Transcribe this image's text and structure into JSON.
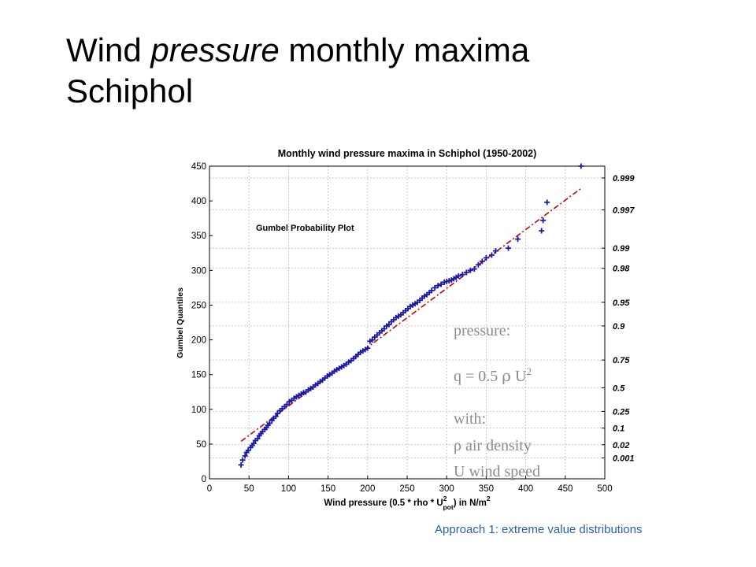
{
  "slide": {
    "title_line1_pre": "Wind ",
    "title_line1_em": "pressure",
    "title_line1_post": " monthly maxima",
    "title_line2": "Schiphol",
    "footer": "Approach 1: extreme value distributions"
  },
  "chart_data": {
    "type": "scatter",
    "title": "Monthly wind pressure maxima in Schiphol (1950-2002)",
    "subtitle": "Gumbel Probability Plot",
    "xlabel": {
      "pre": "Wind pressure (0.5 * rho * U",
      "sup": "2",
      "sub": "pot",
      "post": ") in N/m",
      "unit_sup": "2"
    },
    "ylabel": "Gumbel Quantiles",
    "xlim": [
      0,
      500
    ],
    "ylim": [
      0,
      450
    ],
    "xticks": [
      0,
      50,
      100,
      150,
      200,
      250,
      300,
      350,
      400,
      450,
      500
    ],
    "yticks": [
      0,
      50,
      100,
      150,
      200,
      250,
      300,
      350,
      400,
      450
    ],
    "grid": true,
    "probability_axis": {
      "labels": [
        "0.999",
        "0.997",
        "0.99",
        "0.98",
        "0.95",
        "0.9",
        "0.75",
        "0.5",
        "0.25",
        "0.1",
        "0.02",
        "0.001"
      ],
      "y_values": [
        433,
        387,
        332,
        303,
        254,
        220,
        171,
        131,
        97,
        73,
        49,
        30
      ]
    },
    "fit_line": {
      "x": [
        40,
        470
      ],
      "y": [
        54,
        418
      ],
      "color": "#cc0000",
      "style": "dash-dot"
    },
    "series": [
      {
        "marker": "+",
        "color": "#1a1aa6",
        "x": [
          40,
          42,
          45,
          47,
          49,
          52,
          54,
          56,
          58,
          61,
          63,
          65,
          67,
          70,
          72,
          74,
          76,
          79,
          81,
          84,
          86,
          89,
          92,
          95,
          98,
          101,
          104,
          107,
          110,
          113,
          116,
          119,
          122,
          125,
          128,
          131,
          134,
          137,
          140,
          143,
          146,
          149,
          152,
          155,
          158,
          161,
          164,
          167,
          170,
          173,
          176,
          179,
          182,
          185,
          188,
          191,
          194,
          197,
          200,
          203,
          206,
          209,
          212,
          215,
          218,
          221,
          224,
          227,
          230,
          233,
          236,
          239,
          242,
          245,
          248,
          251,
          254,
          257,
          260,
          263,
          266,
          269,
          272,
          275,
          278,
          281,
          285,
          289,
          293,
          297,
          300,
          303,
          306,
          309,
          312,
          315,
          320,
          325,
          330,
          335,
          340,
          345,
          350,
          357,
          362,
          378,
          390,
          420,
          422,
          427,
          470
        ],
        "y": [
          20,
          27,
          33,
          38,
          41,
          45,
          48,
          51,
          55,
          58,
          62,
          65,
          68,
          71,
          74,
          77,
          80,
          84,
          87,
          90,
          94,
          98,
          101,
          104,
          107,
          111,
          113,
          116,
          118,
          120,
          122,
          124,
          125,
          128,
          130,
          132,
          135,
          137,
          140,
          142,
          145,
          148,
          150,
          152,
          155,
          157,
          159,
          161,
          163,
          165,
          168,
          170,
          173,
          176,
          179,
          182,
          184,
          186,
          188,
          198,
          200,
          204,
          207,
          210,
          213,
          216,
          220,
          222,
          226,
          229,
          232,
          234,
          236,
          239,
          242,
          245,
          248,
          250,
          252,
          254,
          257,
          260,
          263,
          265,
          268,
          271,
          275,
          278,
          280,
          283,
          284,
          285,
          286,
          288,
          290,
          292,
          294,
          297,
          300,
          302,
          308,
          313,
          318,
          322,
          328,
          332,
          345,
          357,
          372,
          398,
          450
        ]
      }
    ],
    "annotation": {
      "line1": "pressure:",
      "line2_pre": "q = 0.5 ",
      "rho": "ρ",
      "line2_post": " U",
      "line2_sup": "2",
      "line3": "with:",
      "line4": "ρ  air density",
      "line5": "U wind speed"
    },
    "colors": {
      "points": "#1a1aa6",
      "fit": "#cc0000",
      "annotation_text": "#8c8c8c"
    }
  }
}
